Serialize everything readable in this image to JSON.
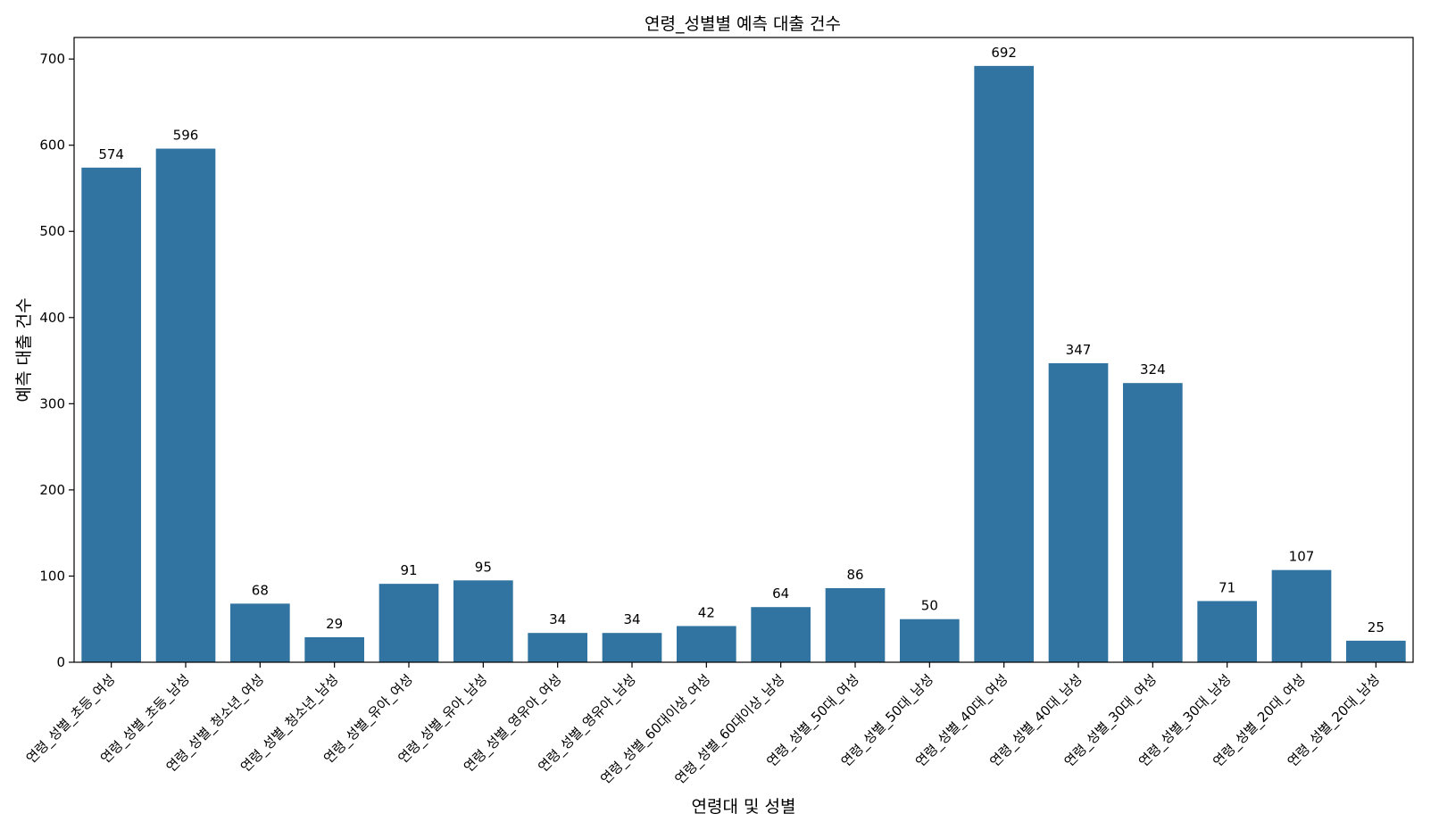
{
  "chart_data": {
    "type": "bar",
    "title": "연령_성별별 예측 대출 건수",
    "xlabel": "연령대 및 성별",
    "ylabel": "예측 대출 건수",
    "ylim": [
      0,
      725
    ],
    "yticks": [
      0,
      100,
      200,
      300,
      400,
      500,
      600,
      700
    ],
    "grid": false,
    "legend": "none",
    "bar_color": "#3274a1",
    "categories": [
      "연령_성별_초등_여성",
      "연령_성별_초등_남성",
      "연령_성별_청소년_여성",
      "연령_성별_청소년_남성",
      "연령_성별_유아_여성",
      "연령_성별_유아_남성",
      "연령_성별_영유아_여성",
      "연령_성별_영유아_남성",
      "연령_성별_60대이상_여성",
      "연령_성별_60대이상_남성",
      "연령_성별_50대_여성",
      "연령_성별_50대_남성",
      "연령_성별_40대_여성",
      "연령_성별_40대_남성",
      "연령_성별_30대_여성",
      "연령_성별_30대_남성",
      "연령_성별_20대_여성",
      "연령_성별_20대_남성"
    ],
    "values": [
      574,
      596,
      68,
      29,
      91,
      95,
      34,
      34,
      42,
      64,
      86,
      50,
      692,
      347,
      324,
      71,
      107,
      25
    ]
  }
}
